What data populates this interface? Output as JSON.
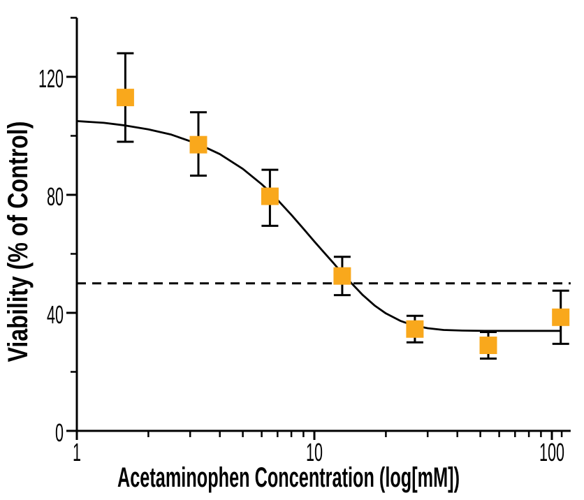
{
  "chart_data": {
    "type": "scatter",
    "title": "",
    "xlabel": "Acetaminophen Concentration (log[mM])",
    "ylabel": "Viability (% of Control)",
    "x_scale": "log",
    "xlim": [
      1,
      120
    ],
    "ylim": [
      0,
      140
    ],
    "grid": false,
    "legend": false,
    "x_ticks": {
      "major": [
        {
          "value": 1,
          "label": "1"
        },
        {
          "value": 10,
          "label": "10"
        },
        {
          "value": 100,
          "label": "100"
        }
      ],
      "minor": [
        2,
        3,
        4,
        5,
        6,
        7,
        8,
        9,
        20,
        30,
        40,
        50,
        60,
        70,
        80,
        90,
        110
      ]
    },
    "y_ticks": {
      "major": [
        {
          "value": 0,
          "label": "0"
        },
        {
          "value": 40,
          "label": "40"
        },
        {
          "value": 80,
          "label": "80"
        },
        {
          "value": 120,
          "label": "120"
        }
      ],
      "minor": [
        20,
        60,
        100,
        140
      ]
    },
    "series": [
      {
        "name": "viability-vs-acetaminophen",
        "marker": "square",
        "marker_size": 25,
        "marker_color": "#F9A81C",
        "error_bar_color": "#000000",
        "points": [
          {
            "x": 1.6,
            "y": 113,
            "err_up": 15,
            "err_down": 15
          },
          {
            "x": 3.25,
            "y": 97,
            "err_up": 11,
            "err_down": 10.5
          },
          {
            "x": 6.5,
            "y": 79.5,
            "err_up": 9,
            "err_down": 10
          },
          {
            "x": 13.1,
            "y": 52.5,
            "err_up": 6.5,
            "err_down": 6.5
          },
          {
            "x": 26.5,
            "y": 34.5,
            "err_up": 4.5,
            "err_down": 4.5
          },
          {
            "x": 54,
            "y": 29,
            "err_up": 4.5,
            "err_down": 4.5
          },
          {
            "x": 109,
            "y": 38.5,
            "err_up": 9,
            "err_down": 9
          }
        ]
      }
    ],
    "fit_curve": {
      "name": "sigmoidal-dose-response-fit",
      "color": "#000000",
      "top_plateau": 105,
      "bottom_plateau": 34,
      "points": [
        [
          1,
          105
        ],
        [
          1.3,
          104.4
        ],
        [
          1.6,
          103.5
        ],
        [
          2,
          102.2
        ],
        [
          2.5,
          100.4
        ],
        [
          3.25,
          97.2
        ],
        [
          4,
          93.8
        ],
        [
          5,
          88.8
        ],
        [
          6,
          83.6
        ],
        [
          6.5,
          81
        ],
        [
          7,
          78.3
        ],
        [
          8,
          73.2
        ],
        [
          9,
          68.5
        ],
        [
          10,
          64.2
        ],
        [
          11,
          60.4
        ],
        [
          12,
          57
        ],
        [
          13.1,
          53.4
        ],
        [
          14.5,
          49.6
        ],
        [
          16,
          46
        ],
        [
          18,
          42.4
        ],
        [
          20,
          39.8
        ],
        [
          23,
          37.3
        ],
        [
          26,
          35.8
        ],
        [
          30,
          34.8
        ],
        [
          35,
          34.2
        ],
        [
          42,
          34
        ],
        [
          52,
          33.9
        ],
        [
          70,
          33.9
        ],
        [
          90,
          33.9
        ],
        [
          109,
          33.9
        ]
      ]
    },
    "reference_line": {
      "y": 50,
      "style": "dashed",
      "color": "#000000"
    }
  },
  "colors": {
    "marker": "#F9A81C",
    "line": "#000000",
    "background": "#FFFFFF"
  }
}
